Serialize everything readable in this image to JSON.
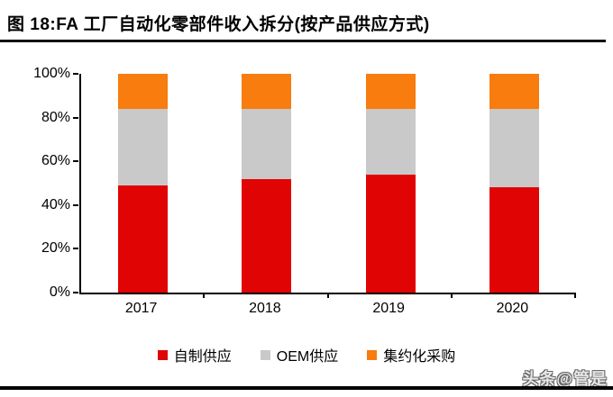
{
  "title": "图 18:FA 工厂自动化零部件收入拆分(按产品供应方式)",
  "watermark": "头条@管是",
  "chart_data": {
    "type": "bar",
    "stacked": true,
    "title": "FA 工厂自动化零部件收入拆分(按产品供应方式)",
    "categories": [
      "2017",
      "2018",
      "2019",
      "2020"
    ],
    "series": [
      {
        "name": "自制供应",
        "color": "#e00404",
        "values": [
          49,
          52,
          54,
          48
        ]
      },
      {
        "name": "OEM供应",
        "color": "#c9c9c9",
        "values": [
          35,
          32,
          30,
          36
        ]
      },
      {
        "name": "集约化采购",
        "color": "#f87c0e",
        "values": [
          16,
          16,
          16,
          16
        ]
      }
    ],
    "xlabel": "",
    "ylabel": "",
    "ylim": [
      0,
      100
    ],
    "yticks": [
      "0%",
      "20%",
      "40%",
      "60%",
      "80%",
      "100%"
    ],
    "unit": "percent",
    "grid": false,
    "legend_position": "bottom"
  }
}
